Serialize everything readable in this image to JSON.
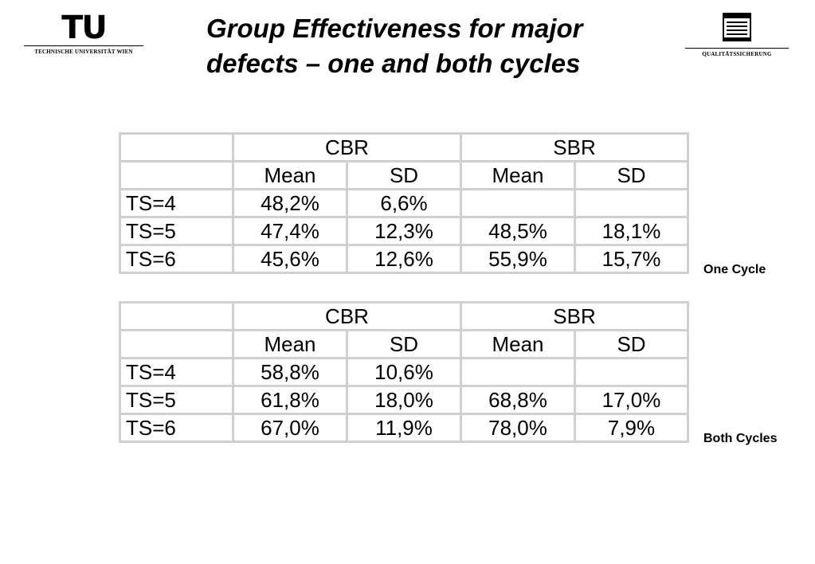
{
  "header": {
    "title_line1": "Group Effectiveness for major",
    "title_line2": "defects – one and both cycles",
    "left_logo": {
      "mark": "TU",
      "caption": "TECHNISCHE UNIVERSITÄT WIEN"
    },
    "right_logo": {
      "icon": "document-stack-icon",
      "caption": "QUALITÄTSSICHERUNG"
    }
  },
  "tables": [
    {
      "caption": "One Cycle",
      "groups": [
        "CBR",
        "SBR"
      ],
      "subheaders": [
        "Mean",
        "SD",
        "Mean",
        "SD"
      ],
      "rows": [
        {
          "label": "TS=4",
          "cells": [
            "48,2%",
            "6,6%",
            "",
            ""
          ]
        },
        {
          "label": "TS=5",
          "cells": [
            "47,4%",
            "12,3%",
            "48,5%",
            "18,1%"
          ]
        },
        {
          "label": "TS=6",
          "cells": [
            "45,6%",
            "12,6%",
            "55,9%",
            "15,7%"
          ]
        }
      ]
    },
    {
      "caption": "Both Cycles",
      "groups": [
        "CBR",
        "SBR"
      ],
      "subheaders": [
        "Mean",
        "SD",
        "Mean",
        "SD"
      ],
      "rows": [
        {
          "label": "TS=4",
          "cells": [
            "58,8%",
            "10,6%",
            "",
            ""
          ]
        },
        {
          "label": "TS=5",
          "cells": [
            "61,8%",
            "18,0%",
            "68,8%",
            "17,0%"
          ]
        },
        {
          "label": "TS=6",
          "cells": [
            "67,0%",
            "11,9%",
            "78,0%",
            "7,9%"
          ]
        }
      ]
    }
  ],
  "colors": {
    "grid": "#d0d0d0",
    "text": "#000000",
    "background": "#ffffff"
  }
}
